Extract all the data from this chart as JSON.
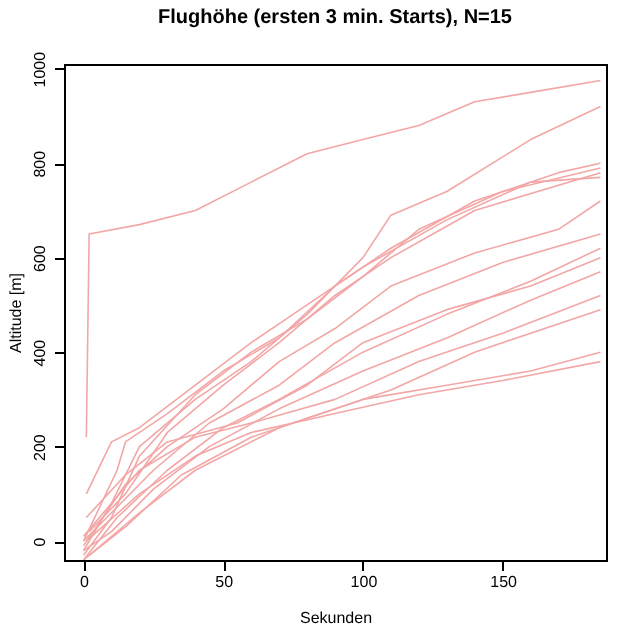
{
  "chart_data": {
    "type": "line",
    "title": "Flughöhe (ersten 3 min. Starts), N=15",
    "xlabel": "Sekunden",
    "ylabel": "Altitude [m]",
    "xlim": [
      -7,
      187
    ],
    "ylim": [
      -40,
      1010
    ],
    "xticks": [
      0,
      50,
      100,
      150
    ],
    "yticks": [
      0,
      200,
      400,
      600,
      800,
      1000
    ],
    "grid": false,
    "legend": false,
    "series": [
      {
        "color": "#f3a6a6",
        "x": [
          1,
          2,
          20,
          40,
          60,
          80,
          100,
          120,
          140,
          160,
          185
        ],
        "values": [
          220,
          650,
          670,
          700,
          760,
          820,
          850,
          880,
          930,
          950,
          975
        ]
      },
      {
        "color": "#f3a6a6",
        "x": [
          0,
          10,
          20,
          40,
          60,
          80,
          100,
          110,
          130,
          160,
          185
        ],
        "values": [
          -20,
          80,
          200,
          300,
          380,
          480,
          600,
          690,
          740,
          850,
          920
        ]
      },
      {
        "color": "#f3a6a6",
        "x": [
          0,
          12,
          15,
          30,
          50,
          70,
          90,
          110,
          140,
          170,
          185
        ],
        "values": [
          0,
          150,
          210,
          270,
          360,
          430,
          540,
          620,
          720,
          780,
          800
        ]
      },
      {
        "color": "#f3a6a6",
        "x": [
          0,
          10,
          20,
          40,
          60,
          80,
          100,
          120,
          150,
          185
        ],
        "values": [
          -30,
          50,
          180,
          310,
          400,
          470,
          560,
          660,
          740,
          790
        ]
      },
      {
        "color": "#f3a6a6",
        "x": [
          2,
          15,
          30,
          50,
          70,
          90,
          110,
          140,
          185
        ],
        "values": [
          20,
          100,
          230,
          330,
          420,
          520,
          600,
          700,
          780
        ]
      },
      {
        "color": "#f3a6a6",
        "x": [
          1,
          10,
          20,
          40,
          60,
          80,
          100,
          130,
          160,
          185
        ],
        "values": [
          100,
          210,
          240,
          330,
          420,
          500,
          580,
          680,
          760,
          770
        ]
      },
      {
        "color": "#f3a6a6",
        "x": [
          0,
          15,
          30,
          50,
          70,
          90,
          110,
          140,
          170,
          185
        ],
        "values": [
          -10,
          120,
          200,
          280,
          380,
          450,
          540,
          610,
          660,
          720
        ]
      },
      {
        "color": "#f3a6a6",
        "x": [
          0,
          10,
          25,
          45,
          70,
          90,
          120,
          150,
          185
        ],
        "values": [
          0,
          60,
          150,
          250,
          330,
          420,
          520,
          590,
          650
        ]
      },
      {
        "color": "#f3a6a6",
        "x": [
          0,
          12,
          30,
          50,
          70,
          100,
          130,
          160,
          185
        ],
        "values": [
          -40,
          50,
          150,
          240,
          300,
          400,
          480,
          550,
          620
        ]
      },
      {
        "color": "#f3a6a6",
        "x": [
          1,
          15,
          30,
          55,
          80,
          100,
          130,
          160,
          185
        ],
        "values": [
          50,
          140,
          210,
          250,
          330,
          420,
          490,
          540,
          600
        ]
      },
      {
        "color": "#f3a6a6",
        "x": [
          0,
          10,
          25,
          45,
          70,
          100,
          130,
          160,
          185
        ],
        "values": [
          -20,
          20,
          110,
          200,
          280,
          360,
          430,
          510,
          570
        ]
      },
      {
        "color": "#f3a6a6",
        "x": [
          0,
          20,
          40,
          60,
          90,
          120,
          150,
          185
        ],
        "values": [
          10,
          150,
          220,
          250,
          300,
          380,
          440,
          520
        ]
      },
      {
        "color": "#f3a6a6",
        "x": [
          2,
          15,
          35,
          60,
          80,
          110,
          140,
          185
        ],
        "values": [
          -30,
          30,
          140,
          220,
          260,
          320,
          400,
          490
        ]
      },
      {
        "color": "#f3a6a6",
        "x": [
          0,
          20,
          40,
          70,
          100,
          130,
          160,
          185
        ],
        "values": [
          -40,
          60,
          150,
          240,
          300,
          330,
          360,
          400
        ]
      },
      {
        "color": "#f3a6a6",
        "x": [
          1,
          20,
          40,
          60,
          90,
          120,
          150,
          185
        ],
        "values": [
          0,
          100,
          180,
          230,
          270,
          310,
          340,
          380
        ]
      }
    ]
  }
}
